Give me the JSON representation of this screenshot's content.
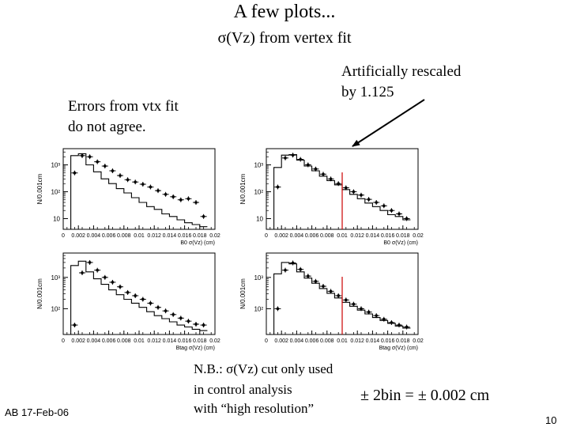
{
  "slide": {
    "title": "A few plots...",
    "subtitle": "σ(Vz) from vertex fit",
    "note_left": [
      "Errors from vtx fit",
      "do not agree."
    ],
    "note_right": [
      "Artificially rescaled",
      "by 1.125"
    ],
    "nb_lines": [
      "N.B.: σ(Vz) cut only used",
      "in control analysis",
      "with “high resolution”"
    ],
    "formula": "± 2bin =  ± 0.002 cm",
    "footer": "AB 17-Feb-06",
    "page_number": "10"
  },
  "chart_data": [
    {
      "type": "histogram",
      "panel": "top-left",
      "ylabel": "N/0.001cm",
      "xlabel": "B0 σ(Vz)  (cm)",
      "xlim": [
        0,
        0.02
      ],
      "ylim": [
        4,
        4000
      ],
      "log_y": true,
      "ytick_labels": [
        "10³",
        "10²",
        "10"
      ],
      "xtick_labels": [
        "0",
        "0.002",
        "0.004",
        "0.006",
        "0.008",
        "0.01",
        "0.012",
        "0.014",
        "0.016",
        "0.018",
        "0.02"
      ],
      "bin_edges": [
        0.001,
        0.002,
        0.003,
        0.004,
        0.005,
        0.006,
        0.007,
        0.008,
        0.009,
        0.01,
        0.011,
        0.012,
        0.013,
        0.014,
        0.015,
        0.016,
        0.017,
        0.018,
        0.019
      ],
      "series": [
        {
          "role": "histogram",
          "values": [
            2200,
            2600,
            1000,
            550,
            300,
            200,
            130,
            90,
            60,
            40,
            28,
            22,
            15,
            12,
            9,
            7,
            6,
            5
          ]
        },
        {
          "role": "points",
          "values": [
            500,
            2200,
            2000,
            1300,
            900,
            600,
            400,
            280,
            230,
            190,
            150,
            110,
            80,
            65,
            50,
            55,
            40,
            12
          ]
        }
      ]
    },
    {
      "type": "histogram",
      "panel": "top-right",
      "ylabel": "N/0.001cm",
      "xlabel": "B0 σ(Vz)  (cm)",
      "xlim": [
        0,
        0.02
      ],
      "ylim": [
        4,
        4000
      ],
      "log_y": true,
      "ytick_labels": [
        "10³",
        "10²",
        "10"
      ],
      "xtick_labels": [
        "0",
        "0.002",
        "0.004",
        "0.006",
        "0.008",
        "0.01",
        "0.012",
        "0.014",
        "0.016",
        "0.018",
        "0.02"
      ],
      "cut_x": 0.01,
      "bin_edges": [
        0.001,
        0.002,
        0.003,
        0.004,
        0.005,
        0.006,
        0.007,
        0.008,
        0.009,
        0.01,
        0.011,
        0.012,
        0.013,
        0.014,
        0.015,
        0.016,
        0.017,
        0.018,
        0.019
      ],
      "series": [
        {
          "role": "histogram",
          "values": [
            800,
            2300,
            2400,
            1500,
            900,
            600,
            380,
            260,
            180,
            120,
            80,
            55,
            38,
            28,
            20,
            14,
            12,
            9
          ]
        },
        {
          "role": "points",
          "values": [
            150,
            1800,
            2300,
            1600,
            1000,
            700,
            450,
            300,
            200,
            140,
            100,
            75,
            52,
            40,
            30,
            20,
            15,
            10
          ]
        }
      ]
    },
    {
      "type": "histogram",
      "panel": "bottom-left",
      "ylabel": "N/0.001cm",
      "xlabel": "Btag σ(Vz)  (cm)",
      "xlim": [
        0,
        0.02
      ],
      "ylim": [
        15,
        6000
      ],
      "log_y": true,
      "ytick_labels": [
        "10³",
        "10²"
      ],
      "xtick_labels": [
        "0",
        "0.002",
        "0.004",
        "0.006",
        "0.008",
        "0.01",
        "0.012",
        "0.014",
        "0.016",
        "0.018",
        "0.02"
      ],
      "bin_edges": [
        0.001,
        0.002,
        0.003,
        0.004,
        0.005,
        0.006,
        0.007,
        0.008,
        0.009,
        0.01,
        0.011,
        0.012,
        0.013,
        0.014,
        0.015,
        0.016,
        0.017,
        0.018,
        0.019
      ],
      "series": [
        {
          "role": "histogram",
          "values": [
            2400,
            3300,
            1500,
            900,
            600,
            400,
            280,
            200,
            150,
            110,
            80,
            60,
            48,
            38,
            30,
            26,
            22,
            20
          ]
        },
        {
          "role": "points",
          "values": [
            30,
            1400,
            3000,
            1700,
            1000,
            700,
            500,
            330,
            260,
            200,
            150,
            110,
            85,
            65,
            50,
            40,
            32,
            30
          ]
        }
      ]
    },
    {
      "type": "histogram",
      "panel": "bottom-right",
      "ylabel": "N/0.001cm",
      "xlabel": "Btag σ(Vz)  (cm)",
      "xlim": [
        0,
        0.02
      ],
      "ylim": [
        15,
        6000
      ],
      "log_y": true,
      "ytick_labels": [
        "10³",
        "10²"
      ],
      "xtick_labels": [
        "0",
        "0.002",
        "0.004",
        "0.006",
        "0.008",
        "0.01",
        "0.012",
        "0.014",
        "0.016",
        "0.018",
        "0.02"
      ],
      "cut_x": 0.01,
      "bin_edges": [
        0.001,
        0.002,
        0.003,
        0.004,
        0.005,
        0.006,
        0.007,
        0.008,
        0.009,
        0.01,
        0.011,
        0.012,
        0.013,
        0.014,
        0.015,
        0.016,
        0.017,
        0.018,
        0.019
      ],
      "series": [
        {
          "role": "histogram",
          "values": [
            1300,
            3000,
            2700,
            1500,
            950,
            650,
            440,
            310,
            220,
            160,
            120,
            90,
            68,
            52,
            42,
            34,
            28,
            24
          ]
        },
        {
          "role": "points",
          "values": [
            100,
            1700,
            2900,
            1800,
            1100,
            750,
            520,
            360,
            260,
            190,
            140,
            100,
            78,
            60,
            46,
            36,
            30,
            26
          ]
        }
      ]
    }
  ]
}
